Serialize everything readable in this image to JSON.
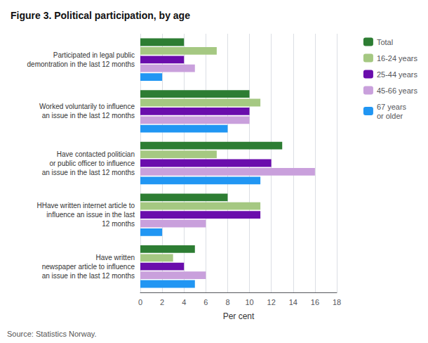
{
  "chart_data": {
    "type": "bar",
    "orientation": "horizontal",
    "title": "Figure 3. Political participation, by age",
    "annotations": [
      "Source: Statistics Norway."
    ],
    "xlabel": "Per cent",
    "xlim": [
      0,
      18
    ],
    "xticks": [
      0,
      2,
      4,
      6,
      8,
      10,
      12,
      14,
      16,
      18
    ],
    "grid": true,
    "legend": "upper right",
    "categories": [
      "Participated in legal public\ndemontration in the last 12 months",
      "Worked voluntarily to influence\nan issue in the last 12 months",
      "Have contacted politician\nor public officer to influence\nan issue in the last 12 months",
      "HHave written internet article to\ninfluence an issue in the last\n12 months",
      "Have written\nnewspaper article to influence\nan issue in the last 12 months"
    ],
    "series": [
      {
        "name": "Total",
        "color": "#2d7d33",
        "values": [
          4.0,
          10.0,
          13.0,
          8.0,
          5.0
        ]
      },
      {
        "name": "16-24 years",
        "color": "#a5c882",
        "values": [
          7.0,
          11.0,
          7.0,
          11.0,
          3.0
        ]
      },
      {
        "name": "25-44 years",
        "color": "#6a0dac",
        "values": [
          4.0,
          10.0,
          12.0,
          11.0,
          4.0
        ]
      },
      {
        "name": "45-66 years",
        "color": "#c9a0dc",
        "values": [
          5.0,
          10.0,
          16.0,
          6.0,
          6.0
        ]
      },
      {
        "name": "67 years\nor older",
        "color": "#2196f3",
        "values": [
          2.0,
          8.0,
          11.0,
          2.0,
          5.0
        ]
      }
    ]
  }
}
